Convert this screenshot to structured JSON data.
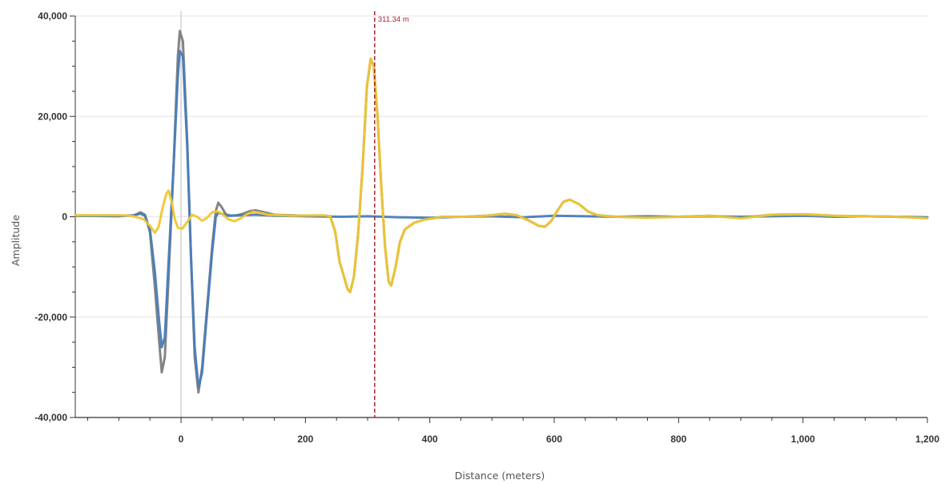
{
  "chart_data": {
    "type": "line",
    "xlabel": "Distance (meters)",
    "ylabel": "Amplitude",
    "xlim": [
      -170,
      1200
    ],
    "ylim": [
      -40000,
      40000
    ],
    "x_ticks": [
      0,
      200,
      400,
      600,
      800,
      1000,
      1200
    ],
    "x_tick_labels": [
      "0",
      "200",
      "400",
      "600",
      "800",
      "1,000",
      "1,200"
    ],
    "y_ticks": [
      40000,
      20000,
      0,
      -20000,
      -40000
    ],
    "y_tick_labels": [
      "40,000",
      "20,000",
      "0",
      "-20,000",
      "-40,000"
    ],
    "grid": true,
    "reference_line": {
      "x": 0,
      "color": "#c8c8c8"
    },
    "cursor": {
      "x": 311.34,
      "label": "311.34 m",
      "color": "#a8262a"
    },
    "series": [
      {
        "color": "#7d7d7d",
        "points": [
          [
            -170,
            200
          ],
          [
            -100,
            200
          ],
          [
            -75,
            300
          ],
          [
            -65,
            900
          ],
          [
            -58,
            400
          ],
          [
            -50,
            -3000
          ],
          [
            -42,
            -14000
          ],
          [
            -35,
            -25000
          ],
          [
            -31,
            -31000
          ],
          [
            -26,
            -28000
          ],
          [
            -20,
            -12000
          ],
          [
            -12,
            10000
          ],
          [
            -5,
            32000
          ],
          [
            -2,
            37000
          ],
          [
            3,
            35000
          ],
          [
            10,
            15000
          ],
          [
            16,
            -8000
          ],
          [
            22,
            -28000
          ],
          [
            28,
            -35000
          ],
          [
            34,
            -30000
          ],
          [
            42,
            -18000
          ],
          [
            50,
            -6000
          ],
          [
            56,
            1200
          ],
          [
            60,
            2800
          ],
          [
            65,
            2000
          ],
          [
            72,
            500
          ],
          [
            80,
            200
          ],
          [
            90,
            300
          ],
          [
            100,
            600
          ],
          [
            110,
            1100
          ],
          [
            120,
            1300
          ],
          [
            130,
            1000
          ],
          [
            150,
            400
          ],
          [
            200,
            200
          ],
          [
            240,
            100
          ],
          [
            248,
            -3000
          ],
          [
            255,
            -9000
          ],
          [
            268,
            -14500
          ],
          [
            272,
            -15000
          ],
          [
            278,
            -12000
          ],
          [
            285,
            -3000
          ],
          [
            292,
            10000
          ],
          [
            299,
            26000
          ],
          [
            305,
            31500
          ],
          [
            310,
            30000
          ],
          [
            316,
            20000
          ],
          [
            322,
            6000
          ],
          [
            328,
            -6000
          ],
          [
            334,
            -13000
          ],
          [
            338,
            -13700
          ],
          [
            345,
            -10000
          ],
          [
            352,
            -5000
          ],
          [
            360,
            -2500
          ],
          [
            375,
            -1200
          ],
          [
            390,
            -600
          ],
          [
            420,
            0
          ],
          [
            460,
            0
          ],
          [
            500,
            300
          ],
          [
            520,
            600
          ],
          [
            540,
            300
          ],
          [
            560,
            -800
          ],
          [
            575,
            -1800
          ],
          [
            585,
            -2000
          ],
          [
            595,
            -900
          ],
          [
            605,
            1200
          ],
          [
            615,
            3000
          ],
          [
            625,
            3400
          ],
          [
            640,
            2500
          ],
          [
            655,
            1000
          ],
          [
            670,
            300
          ],
          [
            700,
            0
          ],
          [
            750,
            -100
          ],
          [
            800,
            0
          ],
          [
            850,
            200
          ],
          [
            900,
            -200
          ],
          [
            950,
            400
          ],
          [
            1000,
            500
          ],
          [
            1050,
            200
          ],
          [
            1100,
            100
          ],
          [
            1150,
            0
          ],
          [
            1200,
            -200
          ]
        ]
      },
      {
        "color": "#4a7cb8",
        "points": [
          [
            -170,
            200
          ],
          [
            -100,
            100
          ],
          [
            -75,
            300
          ],
          [
            -65,
            600
          ],
          [
            -58,
            200
          ],
          [
            -50,
            -2500
          ],
          [
            -42,
            -11000
          ],
          [
            -35,
            -21000
          ],
          [
            -31,
            -26000
          ],
          [
            -26,
            -24000
          ],
          [
            -20,
            -9000
          ],
          [
            -12,
            10000
          ],
          [
            -5,
            28000
          ],
          [
            -2,
            33000
          ],
          [
            3,
            32000
          ],
          [
            10,
            14000
          ],
          [
            16,
            -8000
          ],
          [
            22,
            -26000
          ],
          [
            28,
            -34000
          ],
          [
            34,
            -31000
          ],
          [
            42,
            -19000
          ],
          [
            50,
            -7000
          ],
          [
            56,
            0
          ],
          [
            60,
            800
          ],
          [
            65,
            600
          ],
          [
            75,
            200
          ],
          [
            100,
            300
          ],
          [
            120,
            400
          ],
          [
            150,
            200
          ],
          [
            200,
            100
          ],
          [
            260,
            0
          ],
          [
            300,
            100
          ],
          [
            350,
            -100
          ],
          [
            400,
            -200
          ],
          [
            450,
            0
          ],
          [
            500,
            100
          ],
          [
            550,
            -100
          ],
          [
            600,
            200
          ],
          [
            650,
            100
          ],
          [
            700,
            0
          ],
          [
            750,
            100
          ],
          [
            800,
            0
          ],
          [
            850,
            100
          ],
          [
            900,
            0
          ],
          [
            950,
            100
          ],
          [
            1000,
            200
          ],
          [
            1050,
            0
          ],
          [
            1100,
            100
          ],
          [
            1150,
            0
          ],
          [
            1200,
            -100
          ]
        ]
      },
      {
        "color": "#f0c630",
        "points": [
          [
            -170,
            300
          ],
          [
            -100,
            300
          ],
          [
            -80,
            200
          ],
          [
            -60,
            -500
          ],
          [
            -50,
            -1800
          ],
          [
            -42,
            -3200
          ],
          [
            -36,
            -2000
          ],
          [
            -30,
            1500
          ],
          [
            -24,
            4500
          ],
          [
            -20,
            5200
          ],
          [
            -15,
            3000
          ],
          [
            -10,
            -500
          ],
          [
            -5,
            -2200
          ],
          [
            2,
            -2400
          ],
          [
            10,
            -1000
          ],
          [
            18,
            400
          ],
          [
            26,
            0
          ],
          [
            34,
            -800
          ],
          [
            42,
            -200
          ],
          [
            50,
            900
          ],
          [
            58,
            1100
          ],
          [
            66,
            600
          ],
          [
            76,
            -500
          ],
          [
            86,
            -900
          ],
          [
            96,
            -300
          ],
          [
            106,
            500
          ],
          [
            116,
            1000
          ],
          [
            126,
            800
          ],
          [
            140,
            400
          ],
          [
            180,
            200
          ],
          [
            230,
            300
          ],
          [
            240,
            100
          ],
          [
            248,
            -3000
          ],
          [
            255,
            -9000
          ],
          [
            268,
            -14500
          ],
          [
            272,
            -15000
          ],
          [
            278,
            -12000
          ],
          [
            285,
            -3000
          ],
          [
            292,
            10000
          ],
          [
            299,
            26000
          ],
          [
            305,
            31500
          ],
          [
            310,
            30000
          ],
          [
            316,
            20000
          ],
          [
            322,
            6000
          ],
          [
            328,
            -6000
          ],
          [
            334,
            -13000
          ],
          [
            338,
            -13700
          ],
          [
            345,
            -10000
          ],
          [
            352,
            -5000
          ],
          [
            360,
            -2500
          ],
          [
            375,
            -1200
          ],
          [
            390,
            -600
          ],
          [
            420,
            0
          ],
          [
            460,
            0
          ],
          [
            500,
            300
          ],
          [
            520,
            600
          ],
          [
            540,
            300
          ],
          [
            560,
            -800
          ],
          [
            575,
            -1800
          ],
          [
            585,
            -2000
          ],
          [
            595,
            -900
          ],
          [
            605,
            1200
          ],
          [
            615,
            3000
          ],
          [
            625,
            3400
          ],
          [
            640,
            2500
          ],
          [
            655,
            1000
          ],
          [
            670,
            300
          ],
          [
            700,
            0
          ],
          [
            750,
            -200
          ],
          [
            800,
            0
          ],
          [
            850,
            200
          ],
          [
            900,
            -300
          ],
          [
            950,
            400
          ],
          [
            1000,
            500
          ],
          [
            1050,
            200
          ],
          [
            1100,
            100
          ],
          [
            1150,
            0
          ],
          [
            1200,
            -300
          ]
        ]
      }
    ]
  }
}
